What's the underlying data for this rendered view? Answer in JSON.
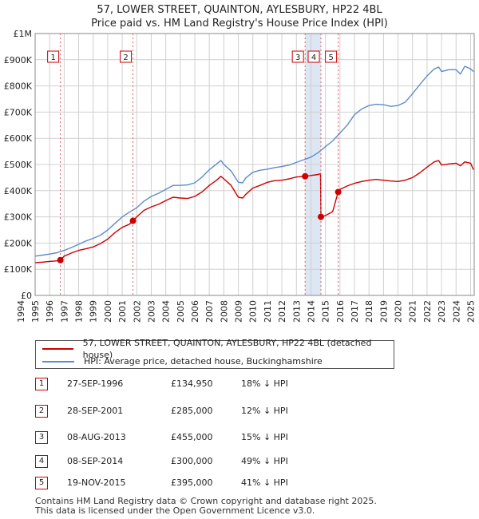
{
  "chart_data": {
    "type": "line",
    "title": "57, LOWER STREET, QUAINTON, AYLESBURY, HP22 4BL",
    "subtitle": "Price paid vs. HM Land Registry's House Price Index (HPI)",
    "xlim": [
      1995.0,
      2025.25
    ],
    "ylim": [
      0,
      1000000
    ],
    "x_ticks": [
      "1994",
      "1995",
      "1996",
      "1997",
      "1998",
      "1999",
      "2000",
      "2001",
      "2002",
      "2003",
      "2004",
      "2005",
      "2006",
      "2007",
      "2008",
      "2009",
      "2010",
      "2011",
      "2012",
      "2013",
      "2014",
      "2015",
      "2016",
      "2017",
      "2018",
      "2019",
      "2020",
      "2021",
      "2022",
      "2023",
      "2024",
      "2025"
    ],
    "y_ticks": [
      {
        "value": 0,
        "label": "£0"
      },
      {
        "value": 100000,
        "label": "£100K"
      },
      {
        "value": 200000,
        "label": "£200K"
      },
      {
        "value": 300000,
        "label": "£300K"
      },
      {
        "value": 400000,
        "label": "£400K"
      },
      {
        "value": 500000,
        "label": "£500K"
      },
      {
        "value": 600000,
        "label": "£600K"
      },
      {
        "value": 700000,
        "label": "£700K"
      },
      {
        "value": 800000,
        "label": "£800K"
      },
      {
        "value": 900000,
        "label": "£900K"
      },
      {
        "value": 1000000,
        "label": "£1M"
      }
    ],
    "grid": true,
    "shaded_spans": [
      [
        2013.6,
        2014.69
      ]
    ],
    "series": [
      {
        "name": "57, LOWER STREET, QUAINTON, AYLESBURY, HP22 4BL (detached house)",
        "color": "#cc0000",
        "x": [
          1995.0,
          1995.5,
          1996.0,
          1996.5,
          1996.74,
          1997.0,
          1997.5,
          1998.0,
          1998.5,
          1999.0,
          1999.5,
          2000.0,
          2000.5,
          2001.0,
          2001.5,
          2001.74,
          2002.0,
          2002.5,
          2003.0,
          2003.5,
          2004.0,
          2004.5,
          2005.0,
          2005.5,
          2006.0,
          2006.5,
          2007.0,
          2007.5,
          2007.8,
          2008.0,
          2008.5,
          2009.0,
          2009.3,
          2009.5,
          2010.0,
          2010.5,
          2011.0,
          2011.5,
          2012.0,
          2012.5,
          2013.0,
          2013.6,
          2014.0,
          2014.5,
          2014.66,
          2014.69,
          2015.0,
          2015.5,
          2015.88,
          2016.0,
          2016.5,
          2017.0,
          2017.5,
          2018.0,
          2018.5,
          2019.0,
          2019.5,
          2020.0,
          2020.5,
          2021.0,
          2021.5,
          2022.0,
          2022.5,
          2022.8,
          2023.0,
          2023.5,
          2024.0,
          2024.3,
          2024.6,
          2025.0,
          2025.2
        ],
        "values": [
          125000,
          127000,
          130000,
          132000,
          134950,
          150000,
          162000,
          172000,
          178000,
          185000,
          198000,
          215000,
          240000,
          260000,
          272000,
          285000,
          300000,
          325000,
          338000,
          348000,
          362000,
          375000,
          372000,
          370000,
          378000,
          395000,
          420000,
          440000,
          455000,
          445000,
          420000,
          375000,
          372000,
          385000,
          410000,
          420000,
          432000,
          438000,
          440000,
          445000,
          452000,
          455000,
          458000,
          462000,
          465000,
          300000,
          305000,
          320000,
          395000,
          405000,
          418000,
          428000,
          435000,
          440000,
          443000,
          440000,
          437000,
          435000,
          440000,
          450000,
          468000,
          490000,
          510000,
          515000,
          498000,
          502000,
          505000,
          495000,
          510000,
          505000,
          480000
        ]
      },
      {
        "name": "HPI: Average price, detached house, Buckinghamshire",
        "color": "#5b8ccc",
        "x": [
          1995.0,
          1995.5,
          1996.0,
          1996.5,
          1997.0,
          1997.5,
          1998.0,
          1998.5,
          1999.0,
          1999.5,
          2000.0,
          2000.5,
          2001.0,
          2001.5,
          2002.0,
          2002.5,
          2003.0,
          2003.5,
          2004.0,
          2004.5,
          2005.0,
          2005.5,
          2006.0,
          2006.5,
          2007.0,
          2007.5,
          2007.8,
          2008.0,
          2008.5,
          2009.0,
          2009.3,
          2009.5,
          2010.0,
          2010.5,
          2011.0,
          2011.5,
          2012.0,
          2012.5,
          2013.0,
          2013.5,
          2014.0,
          2014.5,
          2015.0,
          2015.5,
          2016.0,
          2016.5,
          2017.0,
          2017.5,
          2018.0,
          2018.5,
          2019.0,
          2019.5,
          2020.0,
          2020.5,
          2021.0,
          2021.5,
          2022.0,
          2022.5,
          2022.8,
          2023.0,
          2023.5,
          2024.0,
          2024.3,
          2024.6,
          2025.0,
          2025.2
        ],
        "values": [
          150000,
          154000,
          158000,
          163000,
          172000,
          183000,
          195000,
          208000,
          218000,
          230000,
          250000,
          275000,
          300000,
          318000,
          335000,
          360000,
          378000,
          390000,
          405000,
          420000,
          420000,
          422000,
          430000,
          452000,
          480000,
          502000,
          515000,
          500000,
          475000,
          432000,
          430000,
          448000,
          470000,
          478000,
          482000,
          488000,
          492000,
          498000,
          508000,
          518000,
          528000,
          545000,
          568000,
          590000,
          620000,
          650000,
          690000,
          712000,
          725000,
          730000,
          728000,
          722000,
          725000,
          738000,
          770000,
          805000,
          838000,
          865000,
          872000,
          855000,
          862000,
          862000,
          845000,
          875000,
          865000,
          855000
        ]
      }
    ],
    "markers": [
      {
        "label": "1",
        "x": 1996.74,
        "y": 134950
      },
      {
        "label": "2",
        "x": 2001.74,
        "y": 285000
      },
      {
        "label": "3",
        "x": 2013.6,
        "y": 455000
      },
      {
        "label": "4",
        "x": 2014.69,
        "y": 300000
      },
      {
        "label": "5",
        "x": 2015.88,
        "y": 395000
      }
    ]
  },
  "legend": {
    "items": [
      {
        "label": "57, LOWER STREET, QUAINTON, AYLESBURY, HP22 4BL (detached house)",
        "color": "#cc0000"
      },
      {
        "label": "HPI: Average price, detached house, Buckinghamshire",
        "color": "#5b8ccc"
      }
    ]
  },
  "sales": [
    {
      "num": "1",
      "date": "27-SEP-1996",
      "price": "£134,950",
      "hpi": "18% ↓ HPI"
    },
    {
      "num": "2",
      "date": "28-SEP-2001",
      "price": "£285,000",
      "hpi": "12% ↓ HPI"
    },
    {
      "num": "3",
      "date": "08-AUG-2013",
      "price": "£455,000",
      "hpi": "15% ↓ HPI"
    },
    {
      "num": "4",
      "date": "08-SEP-2014",
      "price": "£300,000",
      "hpi": "49% ↓ HPI"
    },
    {
      "num": "5",
      "date": "19-NOV-2015",
      "price": "£395,000",
      "hpi": "41% ↓ HPI"
    }
  ],
  "footer": {
    "line1": "Contains HM Land Registry data © Crown copyright and database right 2025.",
    "line2": "This data is licensed under the Open Government Licence v3.0."
  }
}
